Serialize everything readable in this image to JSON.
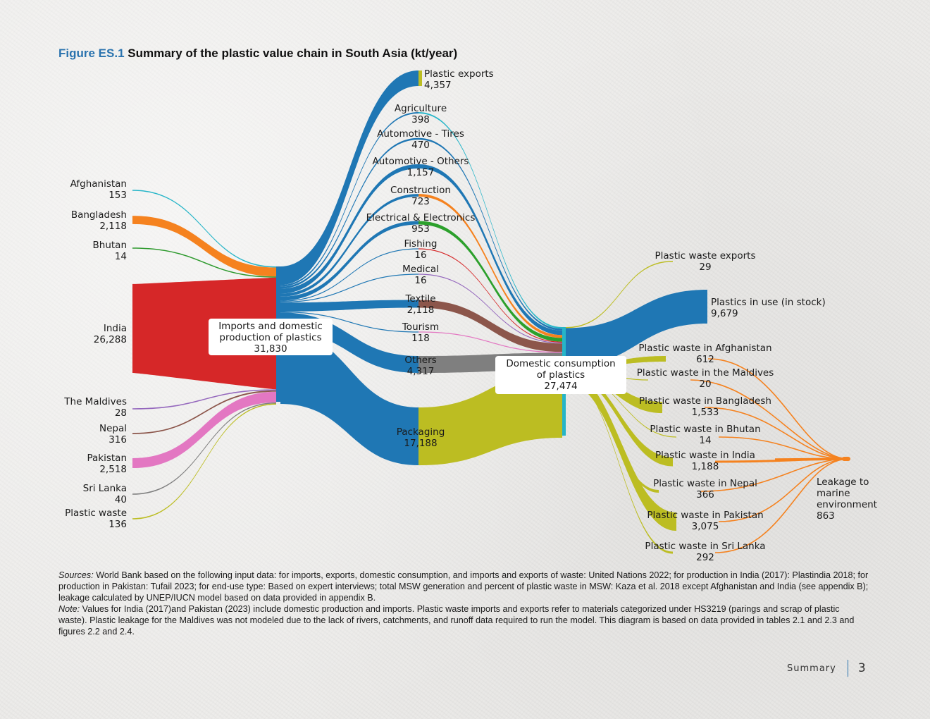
{
  "figure": {
    "number": "Figure ES.1",
    "title": "Summary of the plastic value chain in South Asia (kt/year)"
  },
  "footer": {
    "section": "Summary",
    "page": "3"
  },
  "notes": {
    "sources_label": "Sources:",
    "sources_text": " World Bank based on the following input data: for imports, exports, domestic consumption, and imports and exports of waste: United Nations 2022; for production in India (2017): Plastindia 2018; for production in Pakistan: Tufail 2023; for end-use type: Based on expert interviews; total MSW generation and percent of plastic waste in MSW: Kaza et al. 2018 except Afghanistan and India (see appendix B); leakage calculated by UNEP/IUCN model based on data provided in appendix B.",
    "note_label": "Note:",
    "note_text": " Values for India (2017)and Pakistan (2023) include domestic production and imports. Plastic waste imports and exports refer to materials categorized under HS3219 (parings and scrap of plastic waste). Plastic leakage for the Maldives was not modeled due to the lack of rivers, catchments, and runoff data required to run the model. This diagram is based on data provided in tables 2.1 and 2.3 and figures 2.2 and 2.4."
  },
  "sankey": {
    "hub_imports": {
      "label": "Imports and domestic production of plastics",
      "lines": [
        "Imports and domestic",
        "production of plastics"
      ],
      "value": "31,830"
    },
    "hub_consumption": {
      "label": "Domestic consumption of plastics",
      "lines": [
        "Domestic consumption",
        "of plastics"
      ],
      "value": "27,474"
    },
    "sources": [
      {
        "name": "Afghanistan",
        "value": "153",
        "amount": 153,
        "color": "#26b5c8"
      },
      {
        "name": "Bangladesh",
        "value": "2,118",
        "amount": 2118,
        "color": "#f5821f"
      },
      {
        "name": "Bhutan",
        "value": "14",
        "amount": 14,
        "color": "#2e9a2e"
      },
      {
        "name": "India",
        "value": "26,288",
        "amount": 26288,
        "color": "#d62728"
      },
      {
        "name": "The Maldives",
        "value": "28",
        "amount": 28,
        "color": "#9467bd"
      },
      {
        "name": "Nepal",
        "value": "316",
        "amount": 316,
        "color": "#8c564b"
      },
      {
        "name": "Pakistan",
        "value": "2,518",
        "amount": 2518,
        "color": "#e377c2"
      },
      {
        "name": "Sri Lanka",
        "value": "40",
        "amount": 40,
        "color": "#7f7f7f"
      },
      {
        "name": "Plastic waste",
        "value": "136",
        "amount": 136,
        "color": "#bcbd22"
      }
    ],
    "exports": {
      "name": "Plastic exports",
      "value": "4,357",
      "amount": 4357,
      "color": "#bcbd22"
    },
    "sectors": [
      {
        "name": "Agriculture",
        "value": "398",
        "amount": 398,
        "color": "#26b5c8"
      },
      {
        "name": "Automotive - Tires",
        "value": "470",
        "amount": 470,
        "color": "#1f77b4"
      },
      {
        "name": "Automotive - Others",
        "value": "1,157",
        "amount": 1157,
        "color": "#1f77b4"
      },
      {
        "name": "Construction",
        "value": "723",
        "amount": 723,
        "color": "#f5821f"
      },
      {
        "name": "Electrical & Electronics",
        "value": "953",
        "amount": 953,
        "color": "#2ca02c"
      },
      {
        "name": "Fishing",
        "value": "16",
        "amount": 16,
        "color": "#d62728"
      },
      {
        "name": "Medical",
        "value": "16",
        "amount": 16,
        "color": "#9467bd"
      },
      {
        "name": "Textile",
        "value": "2,118",
        "amount": 2118,
        "color": "#8c564b"
      },
      {
        "name": "Tourism",
        "value": "118",
        "amount": 118,
        "color": "#e377c2"
      },
      {
        "name": "Others",
        "value": "4,317",
        "amount": 4317,
        "color": "#7f7f7f"
      },
      {
        "name": "Packaging",
        "value": "17,188",
        "amount": 17188,
        "color": "#bcbd22"
      }
    ],
    "outputs": [
      {
        "name": "Plastic waste exports",
        "value": "29",
        "amount": 29,
        "color": "#bcbd22"
      },
      {
        "name": "Plastics in use (in stock)",
        "value": "9,679",
        "amount": 9679,
        "color": "#1f77b4"
      }
    ],
    "waste": [
      {
        "name": "Plastic waste in Afghanistan",
        "value": "612",
        "amount": 612
      },
      {
        "name": "Plastic waste in the Maldives",
        "value": "20",
        "amount": 20
      },
      {
        "name": "Plastic waste in Bangladesh",
        "value": "1,533",
        "amount": 1533
      },
      {
        "name": "Plastic waste in Bhutan",
        "value": "14",
        "amount": 14
      },
      {
        "name": "Plastic waste in India",
        "value": "1,188",
        "amount": 1188
      },
      {
        "name": "Plastic waste in Nepal",
        "value": "366",
        "amount": 366
      },
      {
        "name": "Plastic waste in Pakistan",
        "value": "3,075",
        "amount": 3075
      },
      {
        "name": "Plastic waste in Sri Lanka",
        "value": "292",
        "amount": 292
      }
    ],
    "leakage": {
      "label": "Leakage to marine environment",
      "lines": [
        "Leakage to",
        "marine",
        "environment"
      ],
      "value": "863",
      "amount": 863,
      "color": "#f5821f"
    },
    "colors": {
      "hub": "#1f77b4",
      "consumption_bar": "#26b5c8",
      "waste_flow": "#bcbd22",
      "leak_flow": "#f5821f"
    }
  }
}
